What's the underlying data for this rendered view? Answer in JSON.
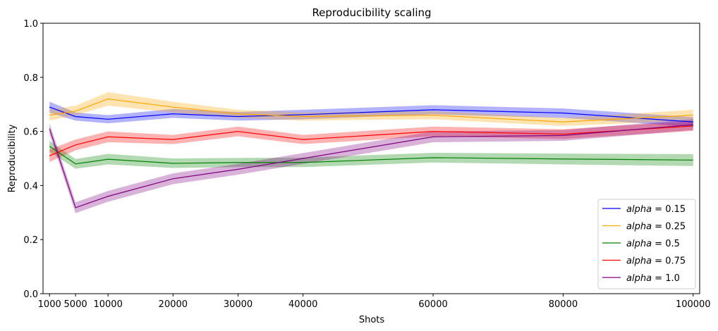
{
  "chart_data": {
    "type": "line",
    "title": "Reproducibility scaling",
    "xlabel": "Shots",
    "ylabel": "Reproducibility",
    "x": [
      1000,
      5000,
      10000,
      20000,
      30000,
      40000,
      60000,
      80000,
      100000
    ],
    "xticks": [
      1000,
      5000,
      10000,
      20000,
      30000,
      40000,
      60000,
      80000,
      100000
    ],
    "xtick_labels": [
      "1000",
      "5000",
      "10000",
      "20000",
      "30000",
      "40000",
      "60000",
      "80000",
      "100000"
    ],
    "yticks": [
      0.0,
      0.2,
      0.4,
      0.6,
      0.8,
      1.0
    ],
    "ytick_labels": [
      "0.0",
      "0.2",
      "0.4",
      "0.6",
      "0.8",
      "1.0"
    ],
    "xlim": [
      0,
      101000
    ],
    "ylim": [
      0.0,
      1.0
    ],
    "grid": false,
    "legend": "lower-right",
    "series": [
      {
        "name": "alpha = 0.15",
        "legend_var": "alpha",
        "legend_val": "0.15",
        "color": "#0000ff",
        "values": [
          0.69,
          0.655,
          0.645,
          0.665,
          0.655,
          0.662,
          0.68,
          0.668,
          0.635
        ],
        "lower": [
          0.67,
          0.64,
          0.63,
          0.65,
          0.64,
          0.645,
          0.663,
          0.65,
          0.617
        ],
        "upper": [
          0.71,
          0.67,
          0.66,
          0.683,
          0.672,
          0.68,
          0.697,
          0.685,
          0.653
        ]
      },
      {
        "name": "alpha = 0.25",
        "legend_var": "alpha",
        "legend_val": "0.25",
        "color": "#ffa500",
        "values": [
          0.66,
          0.675,
          0.72,
          0.69,
          0.665,
          0.655,
          0.66,
          0.635,
          0.66
        ],
        "lower": [
          0.64,
          0.66,
          0.695,
          0.67,
          0.65,
          0.64,
          0.645,
          0.62,
          0.64
        ],
        "upper": [
          0.68,
          0.695,
          0.745,
          0.71,
          0.68,
          0.67,
          0.675,
          0.65,
          0.68
        ]
      },
      {
        "name": "alpha = 0.5",
        "legend_var": "alpha",
        "legend_val": "0.5",
        "color": "#008000",
        "values": [
          0.545,
          0.48,
          0.497,
          0.482,
          0.485,
          0.485,
          0.503,
          0.498,
          0.494
        ],
        "lower": [
          0.525,
          0.462,
          0.478,
          0.465,
          0.468,
          0.468,
          0.485,
          0.478,
          0.472
        ],
        "upper": [
          0.565,
          0.498,
          0.517,
          0.5,
          0.502,
          0.503,
          0.521,
          0.518,
          0.516
        ]
      },
      {
        "name": "alpha = 0.75",
        "legend_var": "alpha",
        "legend_val": "0.75",
        "color": "#ff0000",
        "values": [
          0.51,
          0.55,
          0.58,
          0.57,
          0.6,
          0.57,
          0.6,
          0.59,
          0.62
        ],
        "lower": [
          0.487,
          0.53,
          0.56,
          0.553,
          0.582,
          0.553,
          0.582,
          0.572,
          0.602
        ],
        "upper": [
          0.533,
          0.57,
          0.6,
          0.587,
          0.618,
          0.587,
          0.618,
          0.608,
          0.638
        ]
      },
      {
        "name": "alpha = 1.0",
        "legend_var": "alpha",
        "legend_val": "1.0",
        "color": "#800080",
        "values": [
          0.61,
          0.318,
          0.36,
          0.425,
          0.46,
          0.5,
          0.58,
          0.585,
          0.625
        ],
        "lower": [
          0.59,
          0.298,
          0.34,
          0.405,
          0.44,
          0.48,
          0.56,
          0.565,
          0.605
        ],
        "upper": [
          0.63,
          0.338,
          0.38,
          0.445,
          0.48,
          0.52,
          0.6,
          0.605,
          0.645
        ]
      }
    ]
  }
}
